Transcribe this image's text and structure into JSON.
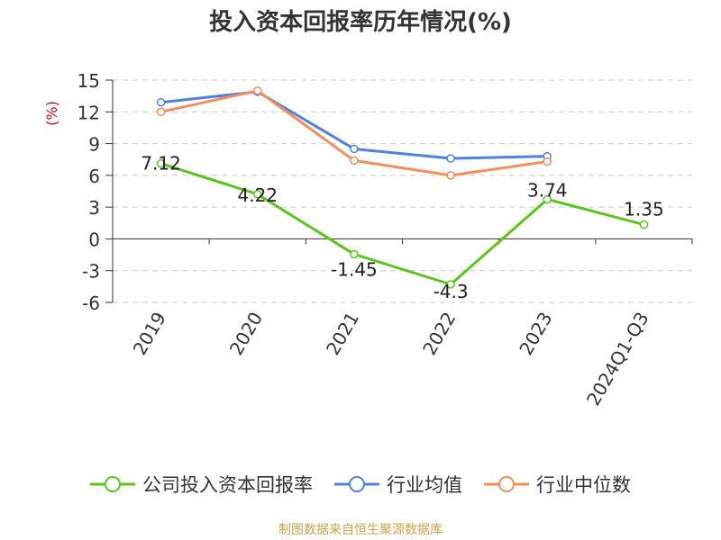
{
  "chart_data": {
    "type": "line",
    "title": "投入资本回报率历年情况(%)",
    "ylabel": "(%)",
    "xlabel": "",
    "categories": [
      "2019",
      "2020",
      "2021",
      "2022",
      "2023",
      "2024Q1-Q3"
    ],
    "yticks": [
      15,
      12,
      9,
      6,
      3,
      0,
      -3,
      -6
    ],
    "ylim": [
      -6,
      15
    ],
    "grid": true,
    "legend_position": "bottom",
    "series": [
      {
        "name": "公司投入资本回报率",
        "color": "#5cc51e",
        "values": [
          7.12,
          4.22,
          -1.45,
          -4.3,
          3.74,
          1.35
        ],
        "labels": [
          "7.12",
          "4.22",
          "-1.45",
          "-4.3",
          "3.74",
          "1.35"
        ]
      },
      {
        "name": "行业均值",
        "color": "#4f82dc",
        "values": [
          12.9,
          13.9,
          8.5,
          7.6,
          7.8,
          null
        ]
      },
      {
        "name": "行业中位数",
        "color": "#f68d5c",
        "values": [
          12.0,
          14.0,
          7.4,
          6.0,
          7.3,
          null
        ]
      }
    ]
  },
  "footer": {
    "source": "制图数据来自恒生聚源数据库"
  }
}
